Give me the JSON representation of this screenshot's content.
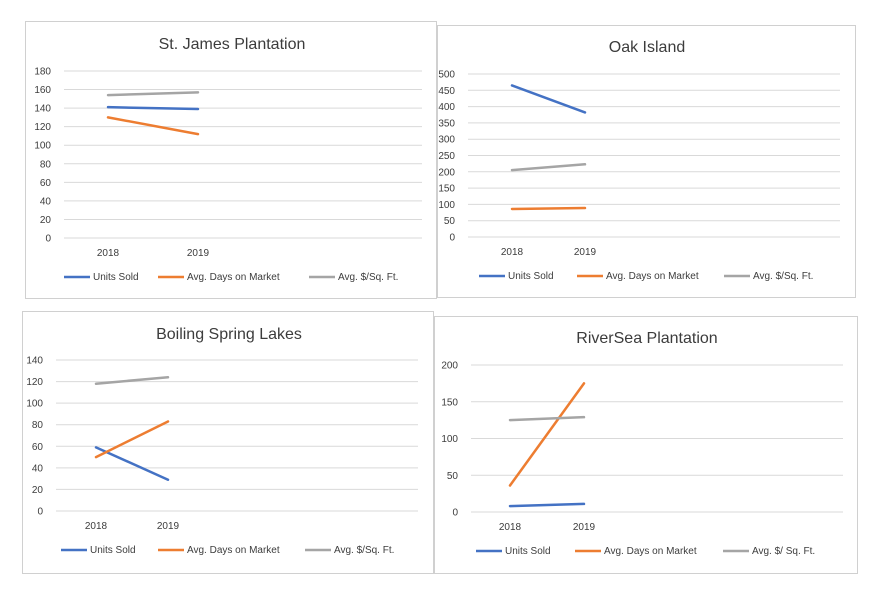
{
  "chart_data": [
    {
      "type": "line",
      "title": "St. James Plantation",
      "categories": [
        "2018",
        "2019"
      ],
      "ylim": [
        0,
        180
      ],
      "yticks": [
        0,
        20,
        40,
        60,
        80,
        100,
        120,
        140,
        160,
        180
      ],
      "grid": true,
      "legend": "bottom",
      "series": [
        {
          "name": "Units Sold",
          "values": [
            141,
            139
          ],
          "color": "#4472c4"
        },
        {
          "name": "Avg. Days on Market",
          "values": [
            130,
            112
          ],
          "color": "#ed7d31"
        },
        {
          "name": "Avg. $/Sq. Ft.",
          "values": [
            154,
            157
          ],
          "color": "#a5a5a5"
        }
      ]
    },
    {
      "type": "line",
      "title": "Oak Island",
      "categories": [
        "2018",
        "2019"
      ],
      "ylim": [
        0,
        500
      ],
      "yticks": [
        0,
        50,
        100,
        150,
        200,
        250,
        300,
        350,
        400,
        450,
        500
      ],
      "grid": true,
      "legend": "bottom",
      "series": [
        {
          "name": "Units Sold",
          "values": [
            465,
            382
          ],
          "color": "#4472c4"
        },
        {
          "name": "Avg. Days on Market",
          "values": [
            86,
            89
          ],
          "color": "#ed7d31"
        },
        {
          "name": "Avg. $/Sq. Ft.",
          "values": [
            205,
            223
          ],
          "color": "#a5a5a5"
        }
      ]
    },
    {
      "type": "line",
      "title": "Boiling Spring Lakes",
      "categories": [
        "2018",
        "2019"
      ],
      "ylim": [
        0,
        140
      ],
      "yticks": [
        0,
        20,
        40,
        60,
        80,
        100,
        120,
        140
      ],
      "grid": true,
      "legend": "bottom",
      "series": [
        {
          "name": "Units Sold",
          "values": [
            59,
            29
          ],
          "color": "#4472c4"
        },
        {
          "name": "Avg. Days on Market",
          "values": [
            50,
            83
          ],
          "color": "#ed7d31"
        },
        {
          "name": "Avg. $/Sq. Ft.",
          "values": [
            118,
            124
          ],
          "color": "#a5a5a5"
        }
      ]
    },
    {
      "type": "line",
      "title": "RiverSea Plantation",
      "categories": [
        "2018",
        "2019"
      ],
      "ylim": [
        0,
        200
      ],
      "yticks": [
        0,
        50,
        100,
        150,
        200
      ],
      "grid": true,
      "legend": "bottom",
      "series": [
        {
          "name": "Units Sold",
          "values": [
            8,
            11
          ],
          "color": "#4472c4"
        },
        {
          "name": "Avg. Days on Market",
          "values": [
            36,
            175
          ],
          "color": "#ed7d31"
        },
        {
          "name": "Avg. $/ Sq. Ft.",
          "values": [
            125,
            129
          ],
          "color": "#a5a5a5"
        }
      ]
    }
  ]
}
